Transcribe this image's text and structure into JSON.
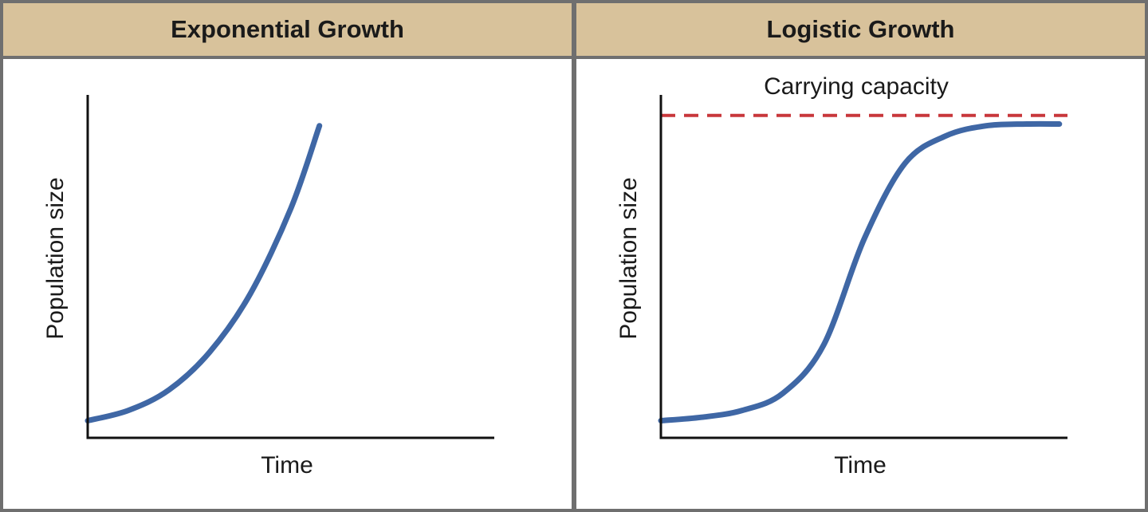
{
  "colors": {
    "header_bg": "#d8c29b",
    "border": "#6f6f6f",
    "curve": "#3f67a5",
    "capacity_line": "#c8373b",
    "axis": "#111111"
  },
  "chart_data": [
    {
      "type": "line",
      "title": "Exponential Growth",
      "xlabel": "Time",
      "ylabel": "Population size",
      "grid": false,
      "xlim": [
        0,
        10
      ],
      "ylim": [
        0,
        100
      ],
      "series": [
        {
          "x": [
            0,
            1,
            2,
            3,
            4,
            5,
            5.7
          ],
          "values": [
            5,
            8,
            14,
            25,
            42,
            67,
            91
          ]
        }
      ]
    },
    {
      "type": "line",
      "title": "Logistic Growth",
      "xlabel": "Time",
      "ylabel": "Population size",
      "grid": false,
      "xlim": [
        0,
        10
      ],
      "ylim": [
        0,
        100
      ],
      "annotations": [
        "Carrying capacity"
      ],
      "reference_lines": [
        {
          "y": 94,
          "style": "dashed",
          "label": "Carrying capacity"
        }
      ],
      "series": [
        {
          "x": [
            0,
            1,
            2,
            3,
            4,
            5,
            6,
            7,
            8,
            9,
            9.8
          ],
          "values": [
            5,
            6,
            8,
            13,
            27,
            58,
            80,
            88,
            91,
            91.5,
            91.5
          ]
        }
      ]
    }
  ]
}
